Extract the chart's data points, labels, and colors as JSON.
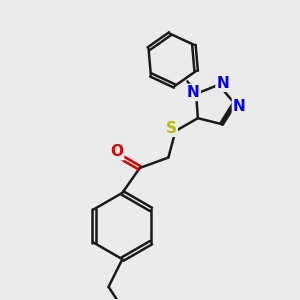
{
  "bg_color": "#ebebeb",
  "bond_color": "#1a1a1a",
  "bond_width": 1.8,
  "atom_colors": {
    "N": "#0000ee",
    "O": "#dd0000",
    "S": "#bbbb00",
    "C": "#1a1a1a"
  },
  "font_size_atom": 11
}
